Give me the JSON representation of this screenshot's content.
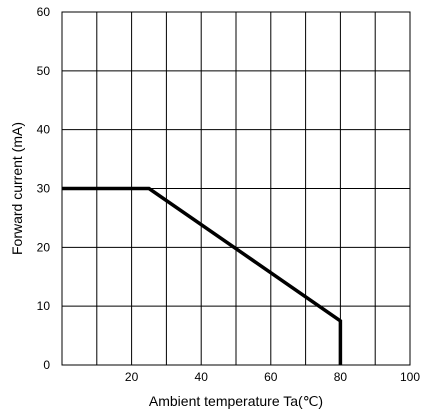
{
  "chart_data": {
    "type": "line",
    "xlabel": "Ambient temperature Ta(℃)",
    "ylabel": "Forward current (mA)",
    "xlim": [
      0,
      100
    ],
    "ylim": [
      0,
      60
    ],
    "x_ticks": [
      10,
      20,
      30,
      40,
      50,
      60,
      70,
      80,
      90,
      100
    ],
    "x_tick_labels": [
      "20",
      "40",
      "60",
      "80",
      "100"
    ],
    "x_tick_label_values": [
      20,
      40,
      60,
      80,
      100
    ],
    "y_ticks": [
      0,
      10,
      20,
      30,
      40,
      50,
      60
    ],
    "y_tick_labels": [
      "0",
      "10",
      "20",
      "30",
      "40",
      "50",
      "60"
    ],
    "grid": true,
    "line_color": "#000000",
    "series": [
      {
        "x": [
          0,
          25,
          80,
          80
        ],
        "y": [
          30,
          30,
          7.5,
          0
        ]
      }
    ]
  }
}
